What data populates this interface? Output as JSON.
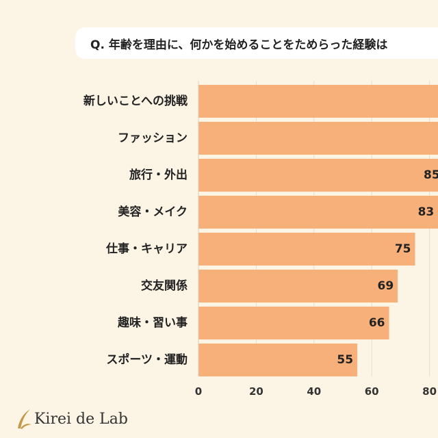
{
  "title": "Q. 年齢を理由に、何かを始めることをためらった経験は",
  "logo_text": "Kirei de Lab",
  "colors": {
    "bar": "#f7b07a",
    "background": "#fcf5e6",
    "gold": "#c49a4a"
  },
  "chart_data": {
    "type": "bar",
    "orientation": "horizontal",
    "categories": [
      "新しいことへの挑戦",
      "ファッション",
      "旅行・外出",
      "美容・メイク",
      "仕事・キャリア",
      "交友関係",
      "趣味・習い事",
      "スポーツ・運動"
    ],
    "values": [
      null,
      null,
      85,
      83,
      75,
      69,
      66,
      55
    ],
    "value_labels": [
      "",
      "",
      "85",
      "83",
      "75",
      "69",
      "66",
      "55"
    ],
    "x_ticks": [
      "0",
      "20",
      "40",
      "60",
      "80"
    ],
    "xlim": [
      0,
      80
    ],
    "grid": true
  }
}
